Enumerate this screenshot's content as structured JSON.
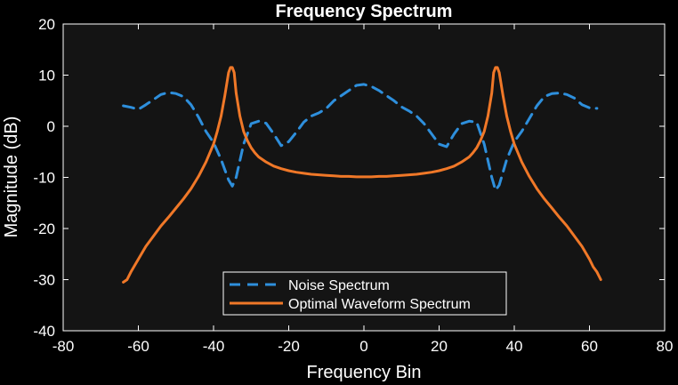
{
  "colors": {
    "figure_bg": "#000000",
    "axes_bg": "#141414",
    "axis_color": "#ffffff",
    "noise": "#2e8fdc",
    "waveform": "#f07828"
  },
  "chart_data": {
    "type": "line",
    "title": "Frequency Spectrum",
    "xlabel": "Frequency Bin",
    "ylabel": "Magnitude (dB)",
    "xlim": [
      -80,
      80
    ],
    "ylim": [
      -40,
      20
    ],
    "xticks": [
      "-80",
      "-60",
      "-40",
      "-20",
      "0",
      "20",
      "40",
      "60",
      "80"
    ],
    "yticks": [
      "-40",
      "-30",
      "-20",
      "-10",
      "0",
      "10",
      "20"
    ],
    "grid": false,
    "legend_position": "bottom-center",
    "series": [
      {
        "name": "Noise Spectrum",
        "style": "dashed",
        "color": "#2e8fdc",
        "x": [
          -64,
          -62,
          -60,
          -58,
          -56,
          -54,
          -52,
          -50,
          -48,
          -46,
          -44,
          -42,
          -40,
          -38,
          -36,
          -35,
          -34,
          -32,
          -30,
          -28,
          -26,
          -24,
          -22,
          -20,
          -18,
          -16,
          -14,
          -12,
          -10,
          -8,
          -6,
          -4,
          -2,
          0,
          2,
          4,
          6,
          8,
          10,
          12,
          14,
          16,
          18,
          20,
          22,
          24,
          26,
          28,
          30,
          32,
          34,
          35,
          36,
          38,
          40,
          42,
          44,
          46,
          48,
          50,
          52,
          54,
          56,
          58,
          60,
          62
        ],
        "y": [
          4.0,
          3.7,
          3.3,
          4.2,
          5.2,
          6.2,
          6.6,
          6.4,
          5.8,
          4.2,
          1.8,
          -1.0,
          -3.2,
          -6.5,
          -10.5,
          -11.7,
          -10.0,
          -3.5,
          0.5,
          1.0,
          0.6,
          -1.5,
          -3.8,
          -3.0,
          -1.2,
          0.8,
          2.0,
          2.6,
          3.5,
          5.0,
          6.0,
          7.0,
          8.0,
          8.2,
          7.8,
          7.0,
          6.0,
          5.0,
          3.8,
          3.0,
          2.0,
          0.5,
          -1.5,
          -3.5,
          -4.0,
          -1.5,
          0.5,
          1.0,
          0.8,
          -3.5,
          -10.0,
          -12.5,
          -11.5,
          -6.5,
          -3.0,
          -1.0,
          1.5,
          4.0,
          5.8,
          6.4,
          6.5,
          6.2,
          5.5,
          4.2,
          3.6,
          3.5
        ]
      },
      {
        "name": "Optimal Waveform Spectrum",
        "style": "solid",
        "color": "#f07828",
        "x": [
          -64,
          -63,
          -62,
          -60,
          -58,
          -56,
          -54,
          -52,
          -50,
          -48,
          -46,
          -44,
          -42,
          -40,
          -39,
          -38,
          -37,
          -36,
          -35.5,
          -35,
          -34.5,
          -34,
          -33,
          -32,
          -31,
          -30,
          -29,
          -28,
          -26,
          -24,
          -22,
          -20,
          -18,
          -16,
          -14,
          -12,
          -10,
          -8,
          -6,
          -4,
          -2,
          0,
          2,
          4,
          6,
          8,
          10,
          12,
          14,
          16,
          18,
          20,
          22,
          24,
          26,
          28,
          29,
          30,
          31,
          32,
          33,
          34,
          34.5,
          35,
          35.5,
          36,
          37,
          38,
          39,
          40,
          42,
          44,
          46,
          48,
          50,
          52,
          54,
          56,
          58,
          60,
          61,
          62,
          63
        ],
        "y": [
          -30.5,
          -30.0,
          -28.5,
          -26.0,
          -23.5,
          -21.5,
          -19.5,
          -17.8,
          -16.0,
          -14.2,
          -12.2,
          -9.8,
          -7.0,
          -3.5,
          -1.0,
          2.0,
          6.0,
          10.5,
          11.5,
          11.5,
          10.5,
          6.5,
          2.0,
          -1.0,
          -2.8,
          -4.2,
          -5.2,
          -6.0,
          -7.0,
          -7.8,
          -8.3,
          -8.7,
          -9.0,
          -9.2,
          -9.4,
          -9.5,
          -9.6,
          -9.7,
          -9.8,
          -9.8,
          -9.9,
          -9.9,
          -9.9,
          -9.8,
          -9.8,
          -9.7,
          -9.6,
          -9.5,
          -9.4,
          -9.2,
          -9.0,
          -8.7,
          -8.3,
          -7.8,
          -7.0,
          -6.0,
          -5.2,
          -4.2,
          -2.8,
          -1.0,
          2.0,
          6.5,
          10.5,
          11.5,
          11.5,
          10.5,
          6.0,
          2.0,
          -1.0,
          -3.5,
          -7.0,
          -9.8,
          -12.2,
          -14.2,
          -16.0,
          -17.8,
          -19.5,
          -21.5,
          -23.5,
          -26.0,
          -27.5,
          -28.5,
          -30.0
        ]
      }
    ]
  }
}
